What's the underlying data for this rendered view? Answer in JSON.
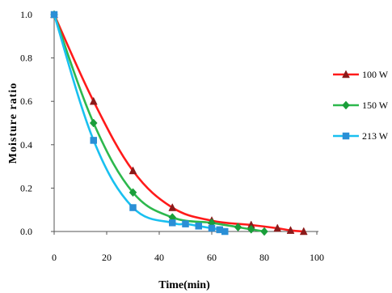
{
  "chart_data": {
    "type": "scatter",
    "xlabel": "Time(min)",
    "ylabel": "Moisture ratio",
    "xlim": [
      0,
      100
    ],
    "ylim": [
      0,
      1.0
    ],
    "x_ticks": [
      "0",
      "20",
      "40",
      "60",
      "80",
      "100"
    ],
    "y_ticks": [
      "0.0",
      "0.2",
      "0.4",
      "0.6",
      "0.8",
      "1.0"
    ],
    "grid": false,
    "legend_position": "right",
    "series": [
      {
        "name": "100 W",
        "color": "#ff1a1a",
        "marker_color": "#8b1a1a",
        "marker": "triangle",
        "points": [
          [
            0,
            1.0
          ],
          [
            15,
            0.6
          ],
          [
            30,
            0.28
          ],
          [
            45,
            0.11
          ],
          [
            60,
            0.05
          ],
          [
            75,
            0.03
          ],
          [
            85,
            0.015
          ],
          [
            90,
            0.005
          ],
          [
            95,
            0.0
          ]
        ]
      },
      {
        "name": "150 W",
        "color": "#2db84d",
        "marker_color": "#1a9e3a",
        "marker": "diamond",
        "points": [
          [
            0,
            1.0
          ],
          [
            15,
            0.5
          ],
          [
            30,
            0.18
          ],
          [
            45,
            0.065
          ],
          [
            60,
            0.04
          ],
          [
            70,
            0.02
          ],
          [
            75,
            0.01
          ],
          [
            80,
            0.0
          ]
        ]
      },
      {
        "name": "213 W",
        "color": "#19c0f0",
        "marker_color": "#2a8fd6",
        "marker": "square",
        "points": [
          [
            0,
            1.0
          ],
          [
            15,
            0.42
          ],
          [
            30,
            0.11
          ],
          [
            45,
            0.04
          ],
          [
            50,
            0.035
          ],
          [
            55,
            0.025
          ],
          [
            60,
            0.015
          ],
          [
            63,
            0.008
          ],
          [
            65,
            0.0
          ]
        ]
      }
    ]
  }
}
